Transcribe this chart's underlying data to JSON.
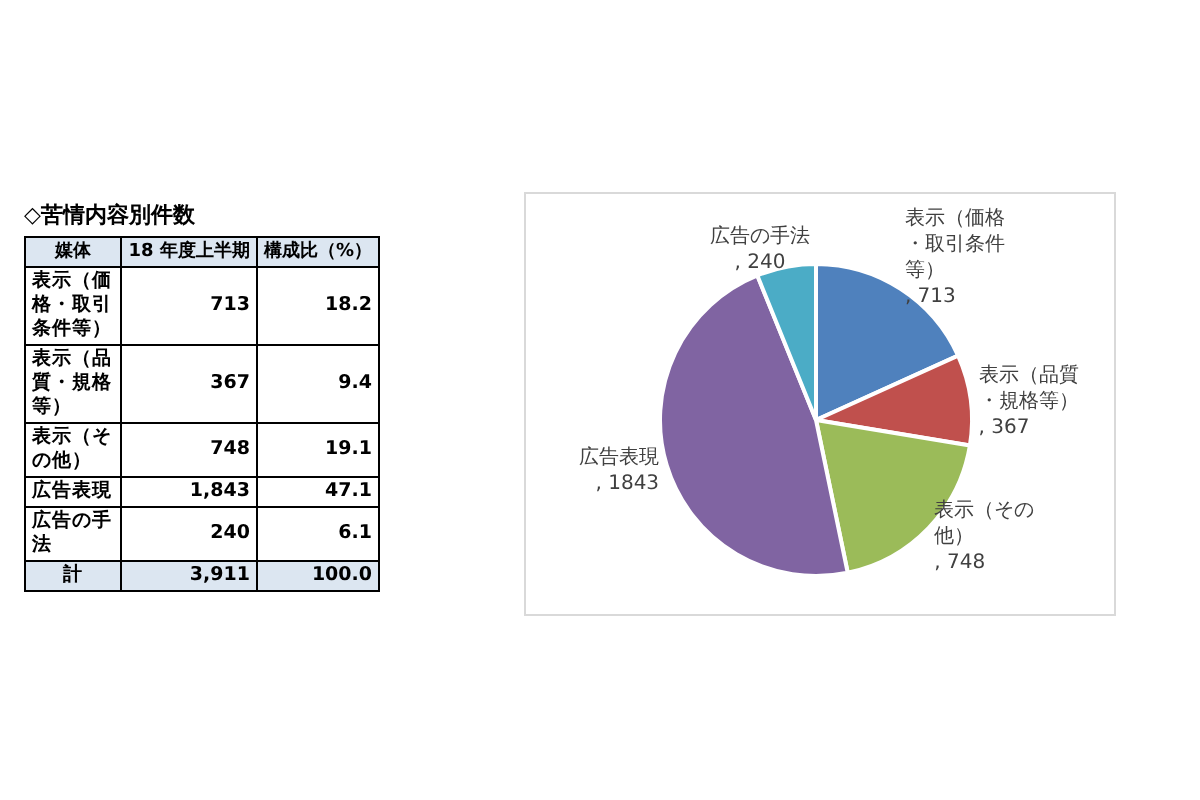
{
  "chart_data": [
    {
      "type": "other",
      "title": "◇苦情内容別件数",
      "annotations": [
        "媒体",
        "18 年度上半期",
        "構成比（%）",
        "表示（価格・取引条件等）",
        "713",
        "18.2",
        "表示（品質・規格等）",
        "367",
        "9.4",
        "表示（その他）",
        "748",
        "19.1",
        "広告表現",
        "1,843",
        "47.1",
        "広告の手法",
        "240",
        "6.1",
        "計",
        "3,911",
        "100.0"
      ]
    },
    {
      "type": "pie",
      "categories": [
        "表示（価格・取引条件等）",
        "表示（品質・規格等）",
        "表示（その他）",
        "広告表現",
        "広告の手法"
      ],
      "values": [
        713,
        367,
        748,
        1843,
        240
      ],
      "value_labels": [
        ", 713",
        ", 367",
        ", 748",
        ", 1843",
        ", 240"
      ],
      "colors": [
        "#4f81bd",
        "#c0504d",
        "#9bbb59",
        "#8064a2",
        "#4bacc6"
      ],
      "data_labels": true
    }
  ]
}
